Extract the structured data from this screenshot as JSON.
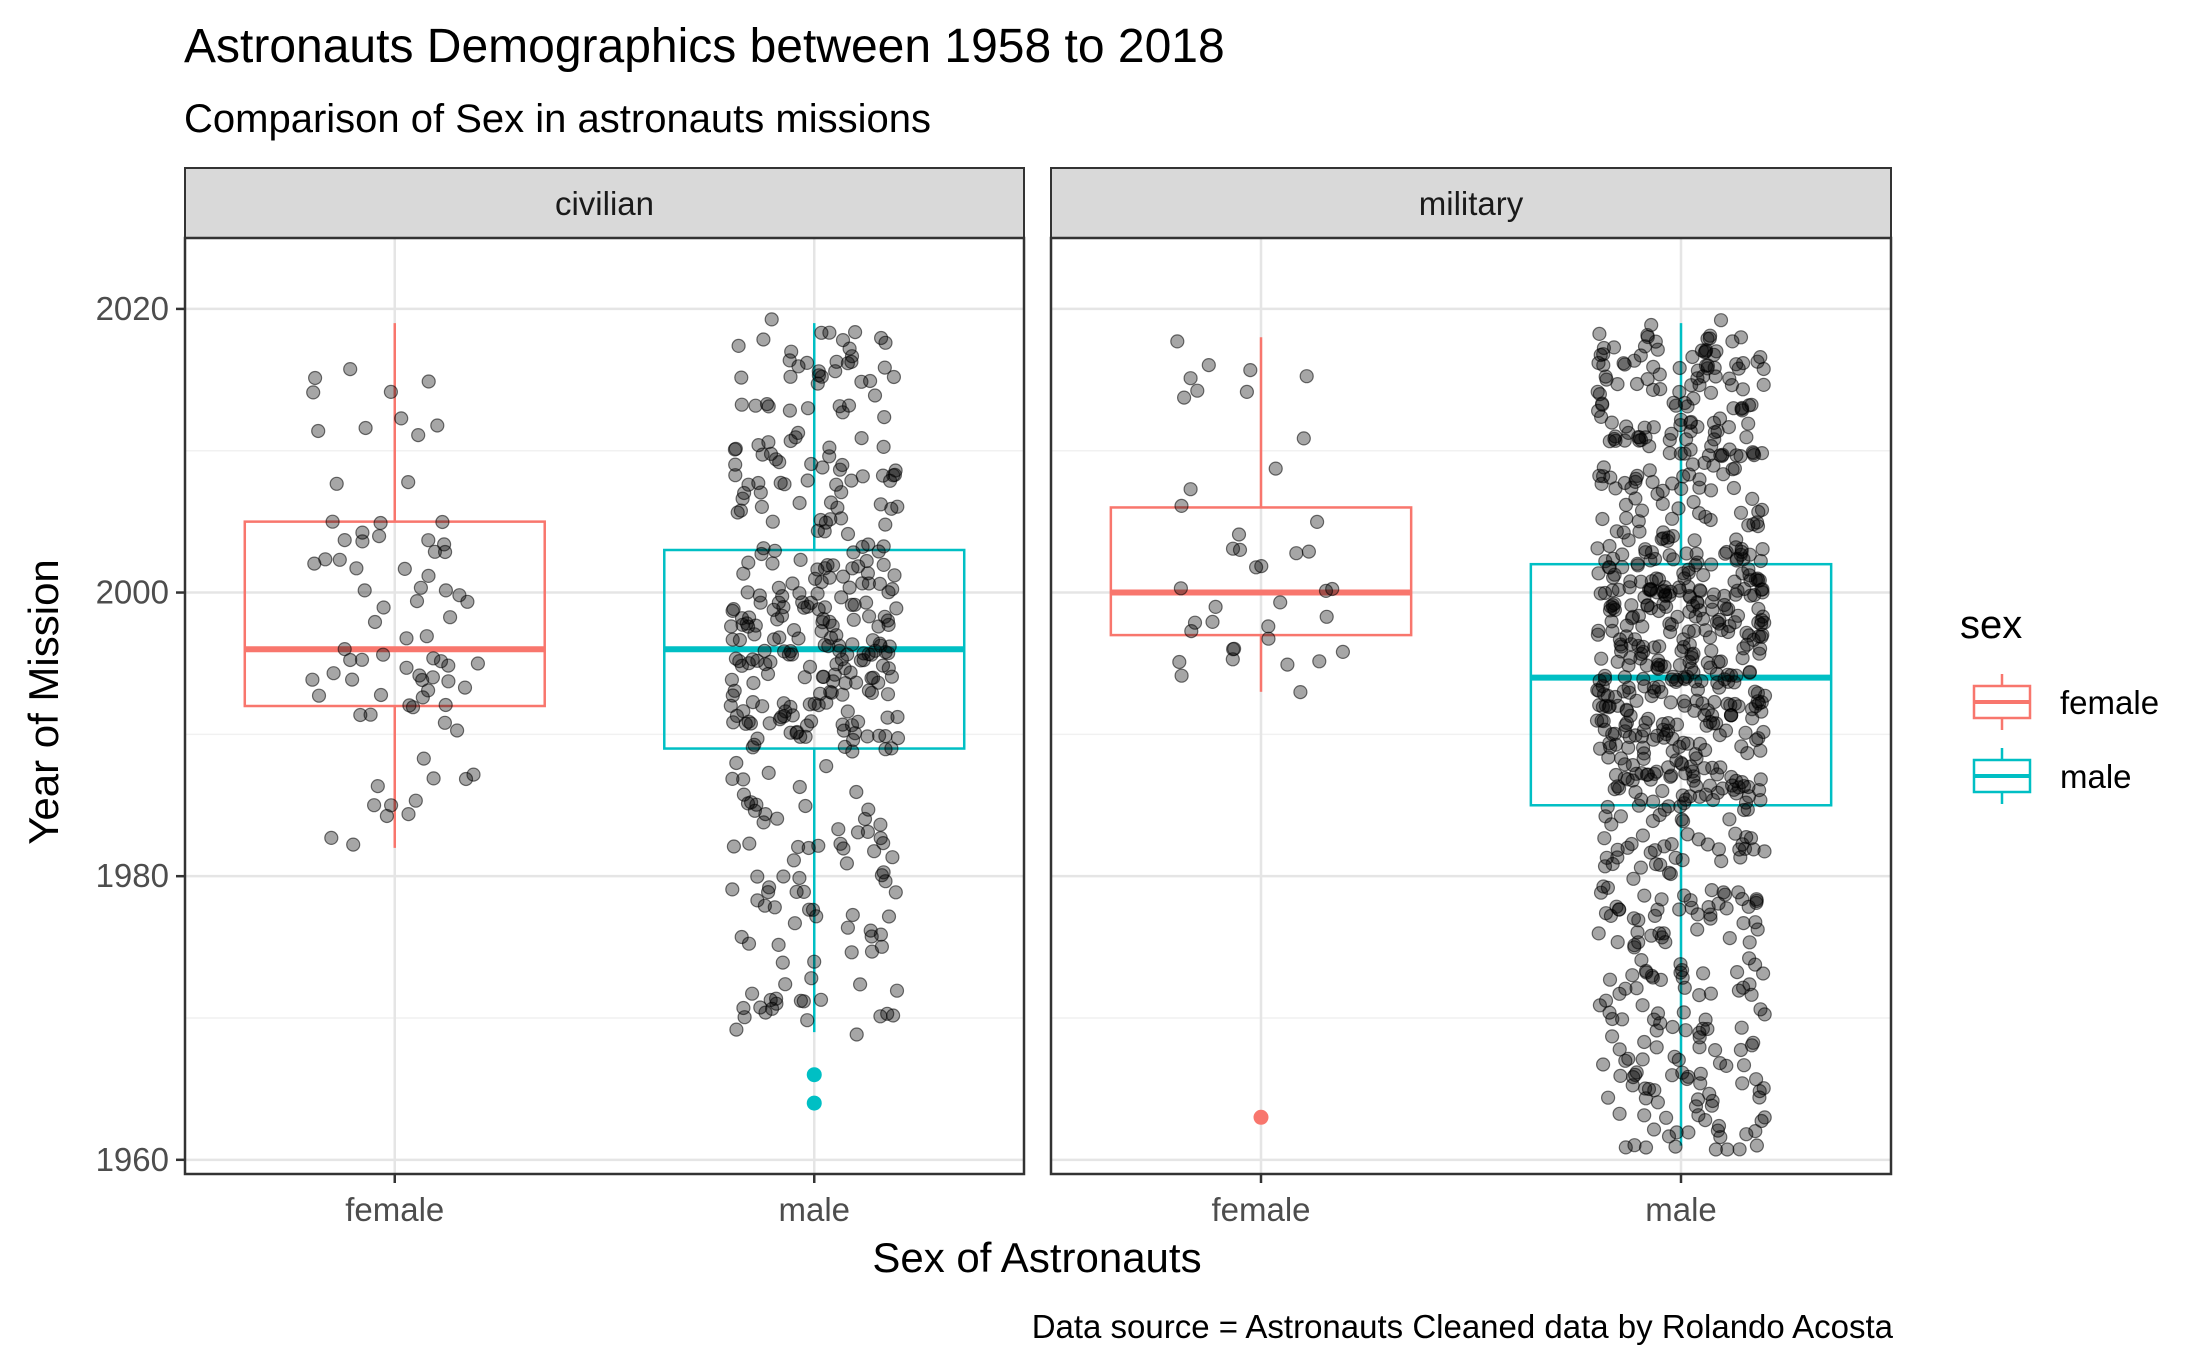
{
  "chart_data": {
    "type": "boxplot",
    "title": "Astronauts Demographics between 1958 to 2018",
    "subtitle": "Comparison of Sex in astronauts missions",
    "xlabel": "Sex of Astronauts",
    "ylabel": "Year of Mission",
    "caption": "Data source = Astronauts Cleaned data by Rolando Acosta",
    "ylim": [
      1959,
      2025
    ],
    "yticks": [
      1960,
      1980,
      2000,
      2020
    ],
    "yticks_labels": [
      "1960",
      "1980",
      "2000",
      "2020"
    ],
    "categories": [
      "female",
      "male"
    ],
    "grid": true,
    "legend": {
      "title": "sex",
      "position": "right",
      "entries": [
        {
          "label": "female",
          "color": "#F8766D"
        },
        {
          "label": "male",
          "color": "#00BFC4"
        }
      ]
    },
    "jitter_point_color": "rgba(0,0,0,0.35)",
    "facets": [
      {
        "label": "civilian",
        "boxes": [
          {
            "category": "female",
            "whisker_low": 1982,
            "q1": 1992,
            "median": 1996,
            "q3": 2005,
            "whisker_high": 2019,
            "outliers": [],
            "n_points": 80
          },
          {
            "category": "male",
            "whisker_low": 1969,
            "q1": 1989,
            "median": 1996,
            "q3": 2003,
            "whisker_high": 2019,
            "outliers": [
              1964,
              1966
            ],
            "n_points": 380
          }
        ]
      },
      {
        "label": "military",
        "boxes": [
          {
            "category": "female",
            "whisker_low": 1993,
            "q1": 1997,
            "median": 2000,
            "q3": 2006,
            "whisker_high": 2018,
            "outliers": [
              1963
            ],
            "n_points": 40
          },
          {
            "category": "male",
            "whisker_low": 1961,
            "q1": 1985,
            "median": 1994,
            "q3": 2002,
            "whisker_high": 2019,
            "outliers": [],
            "n_points": 800
          }
        ]
      }
    ]
  }
}
